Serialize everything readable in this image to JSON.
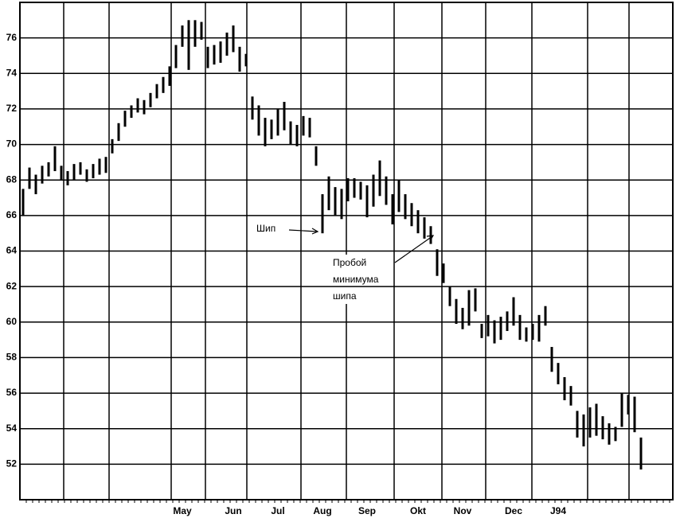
{
  "chart_data": {
    "type": "range_bar",
    "annotations": {
      "spike": "Шип",
      "breakout": [
        "Пробой",
        "минимума",
        "шипа"
      ]
    },
    "categories": [
      null,
      null,
      null,
      null,
      null,
      null,
      null,
      null,
      null,
      null,
      null,
      null,
      null,
      null,
      null,
      null,
      null,
      null,
      null,
      null,
      null,
      null,
      null,
      null,
      null,
      "May",
      null,
      null,
      null,
      null,
      null,
      null,
      null,
      "Jun",
      null,
      null,
      null,
      null,
      null,
      null,
      "Jul",
      null,
      null,
      null,
      null,
      null,
      null,
      "Aug",
      null,
      null,
      null,
      null,
      null,
      null,
      "Sep",
      null,
      null,
      null,
      null,
      null,
      null,
      null,
      "Okt",
      null,
      null,
      null,
      null,
      null,
      null,
      "Nov",
      null,
      null,
      null,
      null,
      null,
      null,
      null,
      "Dec",
      null,
      null,
      null,
      null,
      null,
      null,
      "J94",
      null,
      null,
      null,
      null,
      null,
      null,
      null,
      null,
      null,
      null,
      null,
      null,
      null
    ],
    "high": [
      67.5,
      68.7,
      68.3,
      68.8,
      69.0,
      69.9,
      68.8,
      68.5,
      68.9,
      69.0,
      68.6,
      68.9,
      69.2,
      69.3,
      70.3,
      71.2,
      71.9,
      72.2,
      72.6,
      72.5,
      72.9,
      73.4,
      73.8,
      74.4,
      75.6,
      76.7,
      77.0,
      77.0,
      76.9,
      75.5,
      75.6,
      75.8,
      76.3,
      76.7,
      75.5,
      75.1,
      72.7,
      72.2,
      71.5,
      71.4,
      72.0,
      72.4,
      71.3,
      71.1,
      71.6,
      71.5,
      69.9,
      67.2,
      68.2,
      67.6,
      67.5,
      68.1,
      68.1,
      67.9,
      67.7,
      68.3,
      69.1,
      68.2,
      67.2,
      68.0,
      67.2,
      66.7,
      66.3,
      65.9,
      65.4,
      64.1,
      63.3,
      62.0,
      61.3,
      60.8,
      61.8,
      61.9,
      59.9,
      60.4,
      60.1,
      60.3,
      60.6,
      61.4,
      60.4,
      59.7,
      59.9,
      60.4,
      60.9,
      58.6,
      57.7,
      56.9,
      56.4,
      55.0,
      54.8,
      55.2,
      55.4,
      54.7,
      54.3,
      54.1,
      56.0,
      55.9,
      55.8,
      53.5
    ],
    "low": [
      66.0,
      67.5,
      67.2,
      67.8,
      68.2,
      68.5,
      68.0,
      67.7,
      68.0,
      68.3,
      67.9,
      68.1,
      68.3,
      68.4,
      69.5,
      70.2,
      71.0,
      71.5,
      71.8,
      71.7,
      72.1,
      72.6,
      72.9,
      73.3,
      74.3,
      75.5,
      74.2,
      75.5,
      75.9,
      74.3,
      74.5,
      74.6,
      75.0,
      75.2,
      74.1,
      74.4,
      71.4,
      70.5,
      69.9,
      70.3,
      70.5,
      70.8,
      70.0,
      69.9,
      70.5,
      70.4,
      68.8,
      65.0,
      66.3,
      66.0,
      65.8,
      66.8,
      67.0,
      66.9,
      65.9,
      66.5,
      67.1,
      66.6,
      65.5,
      66.2,
      65.8,
      65.4,
      65.0,
      64.7,
      64.4,
      62.6,
      62.2,
      60.9,
      59.9,
      59.6,
      59.8,
      60.6,
      59.1,
      59.2,
      58.8,
      59.0,
      59.5,
      59.8,
      59.0,
      58.9,
      59.0,
      58.9,
      59.8,
      57.2,
      56.5,
      55.6,
      55.3,
      53.5,
      53.0,
      53.5,
      53.6,
      53.4,
      53.1,
      53.3,
      54.1,
      54.8,
      53.8,
      51.7
    ],
    "color": "#000000",
    "ylim": [
      50,
      78
    ],
    "yticks": [
      52,
      54,
      56,
      58,
      60,
      62,
      64,
      66,
      68,
      70,
      72,
      74,
      76
    ],
    "grid": true
  }
}
